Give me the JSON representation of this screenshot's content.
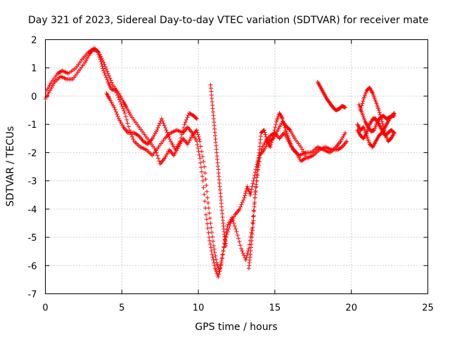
{
  "chart_data": {
    "type": "scatter",
    "title": "Day 321 of 2023, Sidereal Day-to-day VTEC variation (SDTVAR) for receiver mate",
    "xlabel": "GPS time / hours",
    "ylabel": "SDTVAR / TECUs",
    "xlim": [
      0,
      25
    ],
    "ylim": [
      -7,
      2
    ],
    "xticks": [
      "0",
      "5",
      "10",
      "15",
      "20",
      "25"
    ],
    "yticks": [
      "-7",
      "-6",
      "-5",
      "-4",
      "-3",
      "-2",
      "-1",
      "0",
      "1",
      "2"
    ],
    "grid": true,
    "marker": "plus",
    "color": "#ff0000",
    "series": [
      {
        "values": [
          [
            0.0,
            -0.1
          ],
          [
            0.3,
            0.2
          ],
          [
            0.6,
            0.5
          ],
          [
            1.0,
            0.7
          ],
          [
            1.4,
            0.6
          ],
          [
            1.8,
            0.6
          ],
          [
            2.2,
            0.9
          ],
          [
            2.6,
            1.2
          ],
          [
            2.9,
            1.5
          ],
          [
            3.1,
            1.65
          ],
          [
            3.4,
            1.6
          ],
          [
            3.6,
            1.3
          ],
          [
            3.8,
            0.9
          ],
          [
            4.1,
            0.5
          ],
          [
            4.3,
            0.25
          ],
          [
            4.6,
            0.2
          ],
          [
            4.9,
            -0.2
          ],
          [
            5.2,
            -0.6
          ],
          [
            5.5,
            -1.2
          ],
          [
            5.8,
            -1.6
          ],
          [
            6.2,
            -1.8
          ],
          [
            6.6,
            -1.9
          ],
          [
            7.0,
            -2.1
          ],
          [
            7.4,
            -1.8
          ],
          [
            7.8,
            -1.5
          ],
          [
            8.2,
            -1.3
          ],
          [
            8.6,
            -1.2
          ],
          [
            9.0,
            -1.3
          ],
          [
            9.3,
            -1.1
          ],
          [
            9.6,
            -1.3
          ],
          [
            9.9,
            -1.6
          ],
          [
            10.1,
            -2.2
          ],
          [
            10.3,
            -3.0
          ],
          [
            10.5,
            -4.2
          ],
          [
            10.7,
            -5.0
          ],
          [
            10.9,
            -5.6
          ],
          [
            11.1,
            -6.1
          ],
          [
            11.3,
            -6.4
          ],
          [
            11.5,
            -5.9
          ],
          [
            11.7,
            -5.2
          ],
          [
            11.9,
            -4.6
          ],
          [
            12.2,
            -4.3
          ],
          [
            12.5,
            -4.8
          ],
          [
            12.8,
            -5.4
          ],
          [
            13.1,
            -5.8
          ],
          [
            13.3,
            -5.4
          ],
          [
            13.5,
            -4.7
          ],
          [
            13.7,
            -3.6
          ],
          [
            13.9,
            -2.6
          ],
          [
            14.1,
            -1.9
          ],
          [
            14.4,
            -1.6
          ],
          [
            14.7,
            -1.4
          ],
          [
            15.0,
            -1.3
          ],
          [
            15.3,
            -1.5
          ],
          [
            15.6,
            -1.3
          ],
          [
            15.9,
            -1.6
          ],
          [
            16.2,
            -1.9
          ],
          [
            16.6,
            -2.1
          ],
          [
            17.0,
            -2.0
          ],
          [
            17.4,
            -2.0
          ],
          [
            17.8,
            -1.8
          ],
          [
            18.2,
            -1.9
          ],
          [
            18.6,
            -2.0
          ],
          [
            19.0,
            -1.8
          ],
          [
            19.3,
            -1.6
          ],
          [
            19.6,
            -1.3
          ]
        ]
      },
      {
        "values": [
          [
            0.1,
            0.2
          ],
          [
            0.4,
            0.5
          ],
          [
            0.8,
            0.8
          ],
          [
            1.1,
            0.9
          ],
          [
            1.5,
            0.8
          ],
          [
            2.0,
            1.0
          ],
          [
            2.4,
            1.3
          ],
          [
            2.8,
            1.55
          ],
          [
            3.2,
            1.7
          ],
          [
            3.5,
            1.55
          ],
          [
            3.8,
            1.2
          ],
          [
            4.1,
            0.8
          ],
          [
            4.4,
            0.4
          ],
          [
            4.8,
            0.1
          ],
          [
            5.1,
            -0.2
          ],
          [
            5.3,
            -0.4
          ],
          [
            5.6,
            -0.7
          ],
          [
            6.0,
            -1.0
          ],
          [
            6.4,
            -1.3
          ],
          [
            6.8,
            -1.6
          ],
          [
            7.2,
            -1.9
          ],
          [
            7.5,
            -2.4
          ],
          [
            7.8,
            -2.2
          ],
          [
            8.1,
            -1.9
          ],
          [
            8.4,
            -2.1
          ],
          [
            8.7,
            -1.8
          ],
          [
            9.0,
            -1.5
          ],
          [
            9.3,
            -1.7
          ],
          [
            9.6,
            -1.4
          ],
          [
            9.9,
            -1.2
          ],
          [
            10.1,
            -1.6
          ],
          [
            10.4,
            -2.5
          ],
          [
            10.6,
            -3.6
          ],
          [
            10.8,
            -4.5
          ],
          [
            11.0,
            -5.3
          ],
          [
            11.2,
            -5.9
          ],
          [
            11.4,
            -6.2
          ],
          [
            11.6,
            -5.6
          ],
          [
            11.8,
            -5.0
          ],
          [
            12.1,
            -4.5
          ],
          [
            12.4,
            -4.2
          ],
          [
            12.7,
            -4.0
          ],
          [
            13.0,
            -3.6
          ],
          [
            13.2,
            -3.2
          ],
          [
            13.4,
            -3.5
          ],
          [
            13.6,
            -3.0
          ],
          [
            13.8,
            -2.5
          ],
          [
            14.0,
            -2.1
          ],
          [
            14.3,
            -1.9
          ],
          [
            14.6,
            -1.6
          ],
          [
            14.9,
            -1.5
          ],
          [
            15.2,
            -1.2
          ],
          [
            15.5,
            -0.9
          ],
          [
            15.8,
            -1.1
          ],
          [
            16.0,
            -1.2
          ],
          [
            16.3,
            -1.5
          ],
          [
            16.7,
            -1.8
          ],
          [
            17.1,
            -2.2
          ],
          [
            17.5,
            -2.1
          ],
          [
            17.9,
            -1.9
          ],
          [
            18.3,
            -1.8
          ],
          [
            18.7,
            -1.9
          ],
          [
            19.1,
            -1.9
          ],
          [
            19.4,
            -1.8
          ],
          [
            19.7,
            -1.6
          ]
        ]
      },
      {
        "values": [
          [
            4.0,
            0.1
          ],
          [
            4.2,
            -0.1
          ],
          [
            4.5,
            -0.4
          ],
          [
            4.8,
            -0.8
          ],
          [
            5.1,
            -1.1
          ],
          [
            5.4,
            -1.3
          ],
          [
            5.8,
            -1.3
          ],
          [
            6.1,
            -1.4
          ],
          [
            6.4,
            -1.6
          ],
          [
            6.7,
            -1.7
          ],
          [
            7.0,
            -1.5
          ],
          [
            7.3,
            -1.2
          ],
          [
            7.6,
            -0.8
          ],
          [
            7.9,
            -1.2
          ],
          [
            8.2,
            -1.6
          ],
          [
            8.5,
            -1.9
          ],
          [
            8.8,
            -1.6
          ],
          [
            9.1,
            -1.0
          ],
          [
            9.4,
            -0.6
          ],
          [
            9.7,
            -0.7
          ],
          [
            9.9,
            -0.8
          ]
        ]
      },
      {
        "values": [
          [
            10.8,
            0.4
          ],
          [
            10.9,
            -0.2
          ],
          [
            11.0,
            -0.8
          ],
          [
            11.1,
            -1.4
          ],
          [
            11.2,
            -2.0
          ],
          [
            11.3,
            -2.6
          ],
          [
            11.4,
            -3.2
          ],
          [
            11.5,
            -3.8
          ],
          [
            11.6,
            -4.4
          ],
          [
            11.7,
            -4.9
          ],
          [
            11.8,
            -5.3
          ]
        ]
      },
      {
        "values": [
          [
            13.3,
            -6.1
          ],
          [
            13.4,
            -5.6
          ],
          [
            13.5,
            -5.0
          ],
          [
            13.6,
            -4.4
          ],
          [
            13.7,
            -3.6
          ],
          [
            13.8,
            -3.0
          ],
          [
            13.9,
            -2.4
          ],
          [
            14.0,
            -1.9
          ],
          [
            14.1,
            -1.3
          ],
          [
            14.3,
            -1.2
          ],
          [
            14.5,
            -1.6
          ],
          [
            14.7,
            -1.8
          ],
          [
            14.9,
            -1.4
          ],
          [
            15.1,
            -0.9
          ],
          [
            15.3,
            -0.6
          ],
          [
            15.5,
            -0.8
          ],
          [
            15.7,
            -1.2
          ],
          [
            15.9,
            -1.5
          ],
          [
            16.1,
            -1.8
          ],
          [
            16.4,
            -2.0
          ],
          [
            16.7,
            -2.3
          ],
          [
            17.0,
            -2.2
          ]
        ]
      },
      {
        "values": [
          [
            17.8,
            0.5
          ],
          [
            18.0,
            0.3
          ],
          [
            18.2,
            0.1
          ],
          [
            18.4,
            -0.1
          ],
          [
            18.6,
            -0.25
          ],
          [
            18.8,
            -0.4
          ],
          [
            19.0,
            -0.5
          ],
          [
            19.2,
            -0.45
          ],
          [
            19.4,
            -0.35
          ],
          [
            19.6,
            -0.4
          ]
        ]
      },
      {
        "values": [
          [
            20.5,
            -0.3
          ],
          [
            20.7,
            -0.6
          ],
          [
            20.9,
            -0.9
          ],
          [
            21.1,
            -1.1
          ],
          [
            21.3,
            -1.25
          ],
          [
            21.5,
            -1.2
          ],
          [
            21.7,
            -0.9
          ],
          [
            21.9,
            -0.75
          ],
          [
            22.1,
            -0.7
          ],
          [
            22.3,
            -0.8
          ],
          [
            22.5,
            -0.75
          ],
          [
            22.7,
            -0.7
          ],
          [
            22.8,
            -0.6
          ]
        ]
      },
      {
        "values": [
          [
            20.4,
            -1.2
          ],
          [
            20.6,
            -1.4
          ],
          [
            20.8,
            -1.5
          ],
          [
            21.0,
            -1.3
          ],
          [
            21.2,
            -1.0
          ],
          [
            21.4,
            -0.8
          ],
          [
            21.6,
            -0.8
          ],
          [
            21.8,
            -1.0
          ],
          [
            22.0,
            -1.2
          ],
          [
            22.2,
            -1.4
          ],
          [
            22.4,
            -1.3
          ],
          [
            22.6,
            -1.2
          ],
          [
            22.8,
            -1.3
          ]
        ]
      },
      {
        "values": [
          [
            20.6,
            -0.5
          ],
          [
            20.8,
            -0.1
          ],
          [
            21.0,
            0.2
          ],
          [
            21.2,
            0.3
          ],
          [
            21.4,
            0.1
          ],
          [
            21.6,
            -0.2
          ],
          [
            21.8,
            -0.5
          ],
          [
            22.0,
            -0.9
          ],
          [
            22.2,
            -1.3
          ],
          [
            22.4,
            -1.6
          ],
          [
            22.6,
            -1.5
          ],
          [
            22.8,
            -1.3
          ]
        ]
      },
      {
        "values": [
          [
            20.4,
            -1.0
          ],
          [
            20.6,
            -1.2
          ],
          [
            20.8,
            -1.1
          ],
          [
            21.0,
            -1.4
          ],
          [
            21.2,
            -1.7
          ],
          [
            21.4,
            -1.8
          ],
          [
            21.6,
            -1.6
          ],
          [
            21.8,
            -1.4
          ],
          [
            22.0,
            -1.3
          ],
          [
            22.2,
            -1.1
          ],
          [
            22.4,
            -0.9
          ],
          [
            22.6,
            -0.7
          ],
          [
            22.8,
            -0.7
          ]
        ]
      }
    ]
  }
}
